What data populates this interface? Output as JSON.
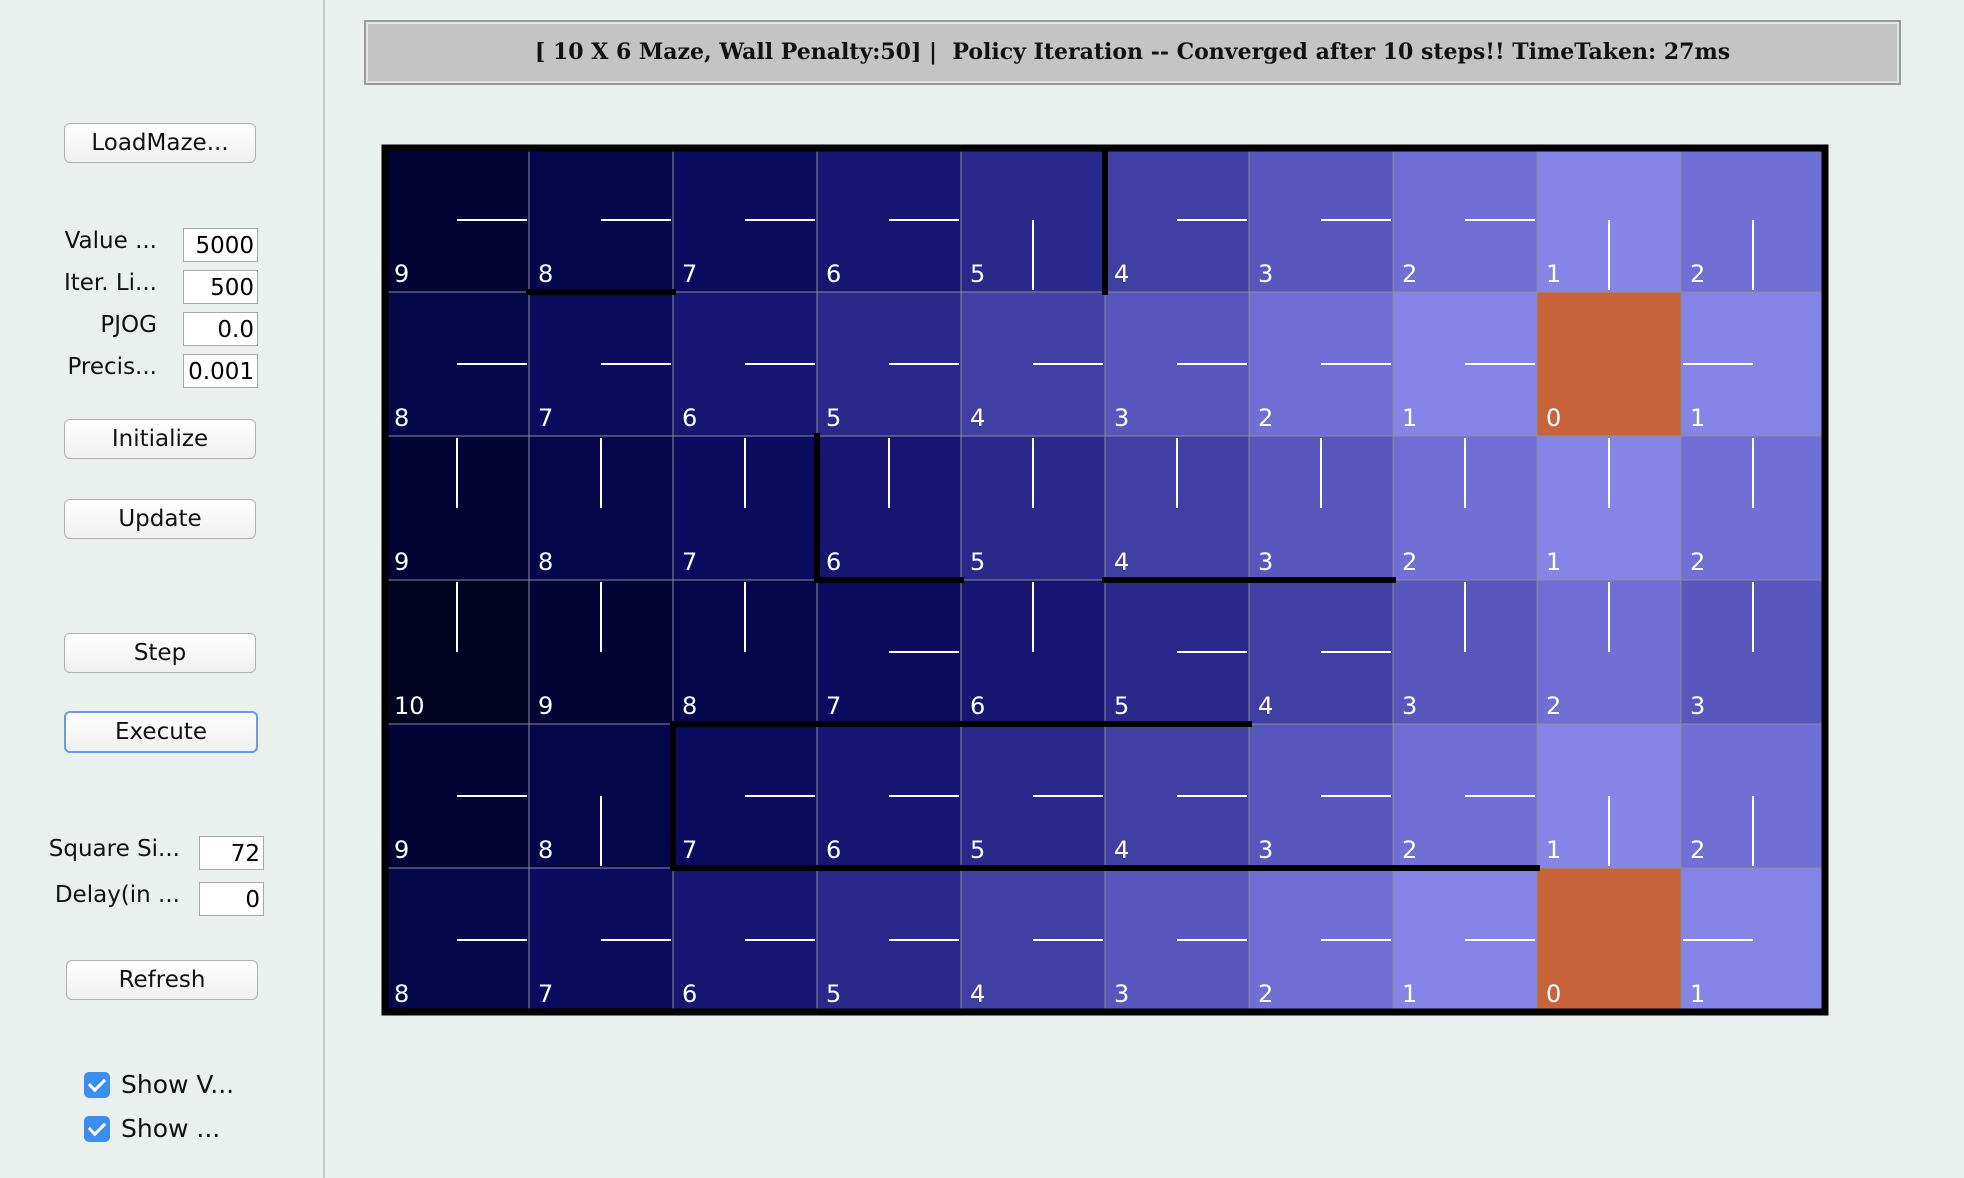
{
  "sidebar": {
    "load_button": "LoadMaze...",
    "fields": [
      {
        "label": "Value ...",
        "value": "5000"
      },
      {
        "label": "Iter. Li...",
        "value": "500"
      },
      {
        "label": "PJOG",
        "value": "0.0"
      },
      {
        "label": "Precis...",
        "value": "0.001"
      }
    ],
    "initialize_button": "Initialize",
    "update_button": "Update",
    "step_button": "Step",
    "execute_button": "Execute",
    "fields2": [
      {
        "label": "Square Si...",
        "value": "72"
      },
      {
        "label": "Delay(in ...",
        "value": "0"
      }
    ],
    "refresh_button": "Refresh",
    "checkboxes": [
      "Show V...",
      "Show ..."
    ]
  },
  "header": {
    "title": "[ 10 X 6 Maze, Wall Penalty:50] |  Policy Iteration -- Converged after 10 steps!! TimeTaken: 27ms"
  },
  "maze": {
    "values": [
      [
        9,
        8,
        7,
        6,
        5,
        4,
        3,
        2,
        1,
        2
      ],
      [
        8,
        7,
        6,
        5,
        4,
        3,
        2,
        1,
        0,
        1
      ],
      [
        9,
        8,
        7,
        6,
        5,
        4,
        3,
        2,
        1,
        2
      ],
      [
        10,
        9,
        8,
        7,
        6,
        5,
        4,
        3,
        2,
        3
      ],
      [
        9,
        8,
        7,
        6,
        5,
        4,
        3,
        2,
        1,
        2
      ],
      [
        8,
        7,
        6,
        5,
        4,
        3,
        2,
        1,
        0,
        1
      ]
    ]
  }
}
